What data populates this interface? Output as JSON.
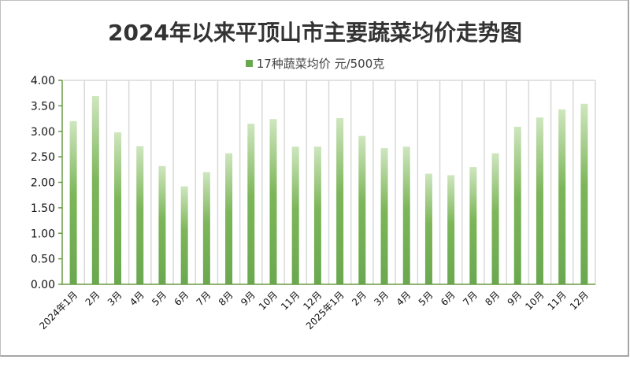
{
  "chart_data": {
    "type": "bar",
    "title": "2024年以来平顶山市主要蔬菜均价走势图",
    "xlabel": "",
    "ylabel": "",
    "ylim": [
      0,
      4.0
    ],
    "yticks": [
      "0.00",
      "0.50",
      "1.00",
      "1.50",
      "2.00",
      "2.50",
      "3.00",
      "3.50",
      "4.00"
    ],
    "grid": {
      "vertical": true,
      "horizontal": false
    },
    "legend_position": "top",
    "categories": [
      "2024年1月",
      "2月",
      "3月",
      "4月",
      "5月",
      "6月",
      "7月",
      "8月",
      "9月",
      "10月",
      "11月",
      "12月",
      "2025年1月",
      "2月",
      "3月",
      "4月",
      "5月",
      "6月",
      "7月",
      "8月",
      "9月",
      "10月",
      "11月",
      "12月"
    ],
    "series": [
      {
        "name": "17种蔬菜均价 元/500克",
        "color": "#6aa84f",
        "values": [
          3.2,
          3.69,
          2.98,
          2.71,
          2.32,
          1.92,
          2.2,
          2.57,
          3.15,
          3.24,
          2.7,
          2.7,
          3.26,
          2.91,
          2.67,
          2.7,
          2.17,
          2.14,
          2.3,
          2.57,
          3.09,
          3.27,
          3.43,
          3.54
        ]
      }
    ]
  },
  "header": {
    "title": "2024年以来平顶山市主要蔬菜均价走势图",
    "legend_label": "17种蔬菜均价 元/500克"
  },
  "colors": {
    "bar_bottom": "#6aa84f",
    "bar_top": "#c9e3b8",
    "axis": "#6a9a45",
    "grid": "#d9d9d9",
    "title": "#333333"
  }
}
